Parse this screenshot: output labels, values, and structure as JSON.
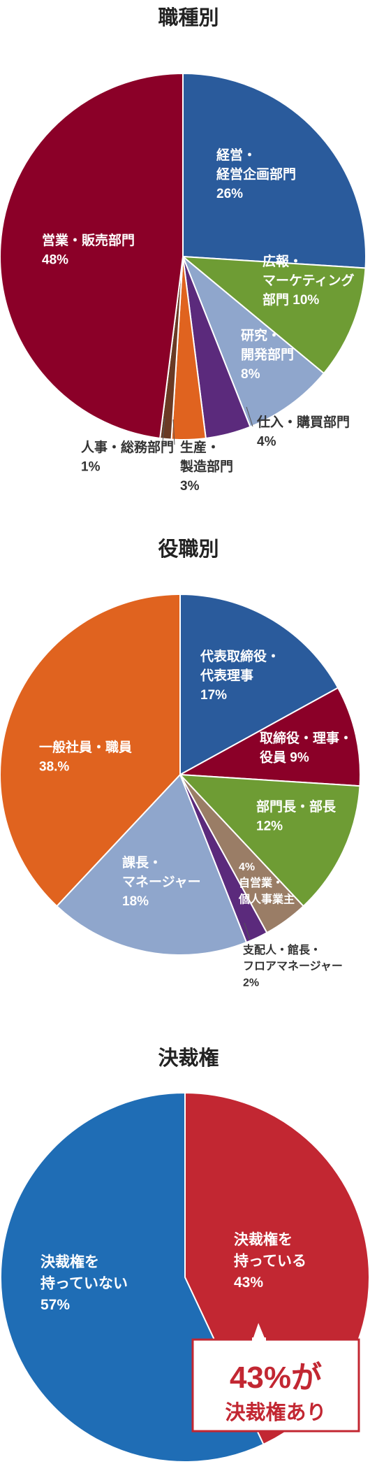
{
  "chart_data": [
    {
      "type": "pie",
      "title": "職種別",
      "slices": [
        {
          "label": [
            "経営・",
            "経営企画部門",
            "26%"
          ],
          "value": 26,
          "color": "#2a5b9c",
          "label_color": "#ffffff"
        },
        {
          "label": [
            "広報・",
            "マーケティング",
            "部門 10%"
          ],
          "value": 10,
          "color": "#6e9c34",
          "label_color": "#ffffff"
        },
        {
          "label": [
            "研究・",
            "開発部門",
            "8%"
          ],
          "value": 8,
          "color": "#8fa6cc",
          "label_color": "#ffffff"
        },
        {
          "label": [
            "仕入・購買部門",
            "4%"
          ],
          "value": 4,
          "color": "#5b2a7c",
          "label_color": "#333333"
        },
        {
          "label": [
            "生産・",
            "製造部門",
            "3%"
          ],
          "value": 3,
          "color": "#e0631f",
          "label_color": "#333333"
        },
        {
          "label": [
            "人事・総務部門",
            "1%"
          ],
          "value": 1,
          "color": "#6a3a24",
          "label_color": "#333333"
        },
        {
          "label": [
            "営業・販売部門",
            "48%"
          ],
          "value": 48,
          "color": "#8b0028",
          "label_color": "#ffffff"
        }
      ]
    },
    {
      "type": "pie",
      "title": "役職別",
      "slices": [
        {
          "label": [
            "代表取締役・",
            "代表理事",
            "17%"
          ],
          "value": 17,
          "color": "#2a5b9c",
          "label_color": "#ffffff"
        },
        {
          "label": [
            "取締役・理事・",
            "役員  9%"
          ],
          "value": 9,
          "color": "#8b0028",
          "label_color": "#ffffff"
        },
        {
          "label": [
            "部門長・部長",
            "12%"
          ],
          "value": 12,
          "color": "#6e9c34",
          "label_color": "#ffffff"
        },
        {
          "label": [
            "4%",
            "自営業・",
            "個人事業主"
          ],
          "value": 4,
          "color": "#9a7d66",
          "label_color": "#ffffff"
        },
        {
          "label": [
            "支配人・館長・",
            "フロアマネージャー",
            "2%"
          ],
          "value": 2,
          "color": "#5b2a7c",
          "label_color": "#333333"
        },
        {
          "label": [
            "課長・",
            "マネージャー",
            "18%"
          ],
          "value": 18,
          "color": "#8fa6cc",
          "label_color": "#ffffff"
        },
        {
          "label": [
            "一般社員・職員",
            "38.%"
          ],
          "value": 38,
          "color": "#e0631f",
          "label_color": "#ffffff"
        }
      ]
    },
    {
      "type": "pie",
      "title": "決裁権",
      "slices": [
        {
          "label": [
            "決裁権を",
            "持っている",
            "43%"
          ],
          "value": 43,
          "color": "#c22732",
          "label_color": "#ffffff"
        },
        {
          "label": [
            "決裁権を",
            "持っていない",
            "57%"
          ],
          "value": 57,
          "color": "#1f6db5",
          "label_color": "#ffffff"
        }
      ],
      "callout": {
        "line1": "43%が",
        "line2": "決裁権あり",
        "color": "#c22732"
      }
    }
  ]
}
